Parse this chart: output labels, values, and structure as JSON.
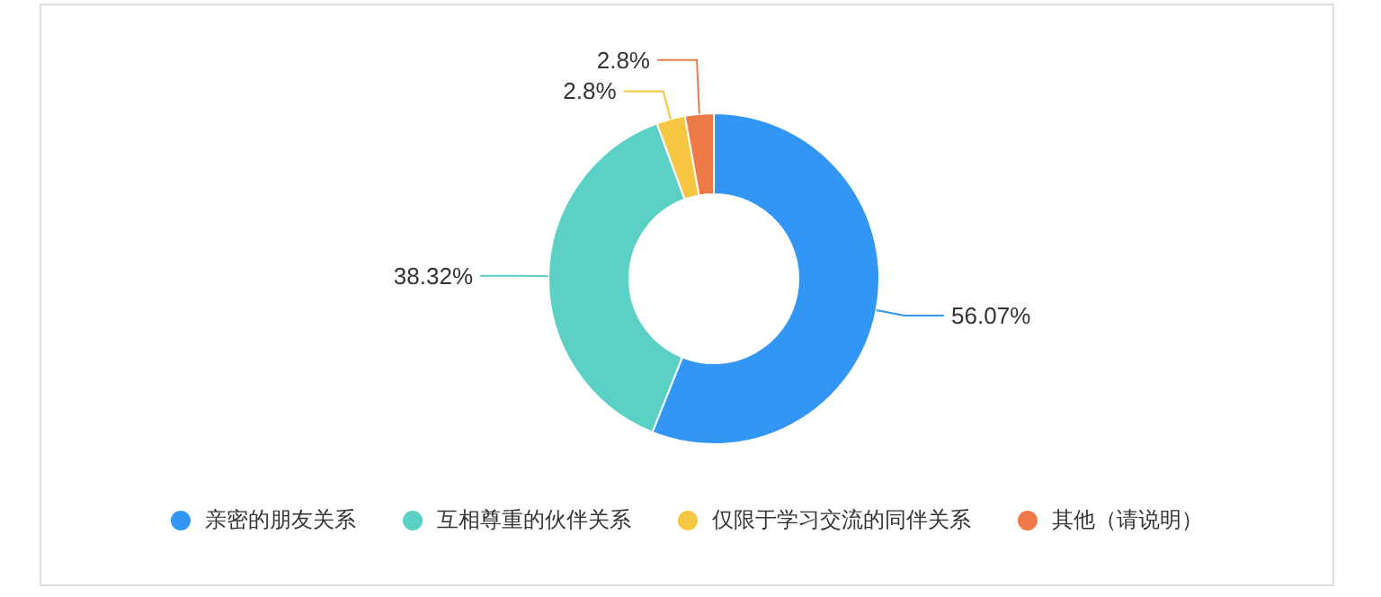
{
  "chart_data": {
    "type": "donut",
    "categories": [
      "亲密的朋友关系",
      "互相尊重的伙伴关系",
      "仅限于学习交流的同伴关系",
      "其他（请说明）"
    ],
    "values": [
      56.07,
      38.32,
      2.8,
      2.8
    ],
    "value_labels": [
      "56.07%",
      "38.32%",
      "2.8%",
      "2.8%"
    ],
    "colors": [
      "#3196f5",
      "#5bd1c6",
      "#f7c744",
      "#ee7b47"
    ],
    "legend": "bottom"
  }
}
